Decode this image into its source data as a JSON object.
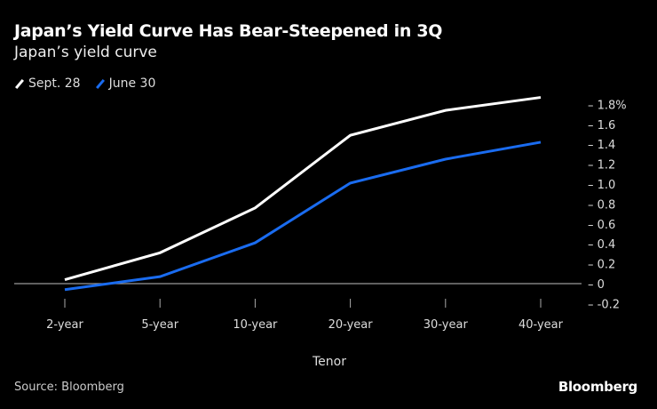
{
  "chart_data": {
    "type": "line",
    "title": "Japan’s Yield Curve Has Bear-Steepened in 3Q",
    "subtitle": "Japan’s yield curve",
    "xlabel": "Tenor",
    "ylabel": "",
    "categories": [
      "2-year",
      "5-year",
      "10-year",
      "20-year",
      "30-year",
      "40-year"
    ],
    "ylim": [
      -0.2,
      1.8
    ],
    "yticks": [
      "1.8%",
      "1.6",
      "1.4",
      "1.2",
      "1.0",
      "0.8",
      "0.6",
      "0.4",
      "0.2",
      "0",
      "-0.2"
    ],
    "ytick_values": [
      1.8,
      1.6,
      1.4,
      1.2,
      1.0,
      0.8,
      0.6,
      0.4,
      0.2,
      0,
      -0.2
    ],
    "legend_position": "top-left",
    "grid": false,
    "series": [
      {
        "name": "Sept. 28",
        "color": "#ffffff",
        "values": [
          0.04,
          0.31,
          0.76,
          1.49,
          1.74,
          1.87
        ]
      },
      {
        "name": "June 30",
        "color": "#1a6cf0",
        "values": [
          -0.06,
          0.07,
          0.41,
          1.01,
          1.25,
          1.42
        ]
      }
    ]
  },
  "footer": {
    "source": "Source: Bloomberg",
    "brand": "Bloomberg"
  }
}
